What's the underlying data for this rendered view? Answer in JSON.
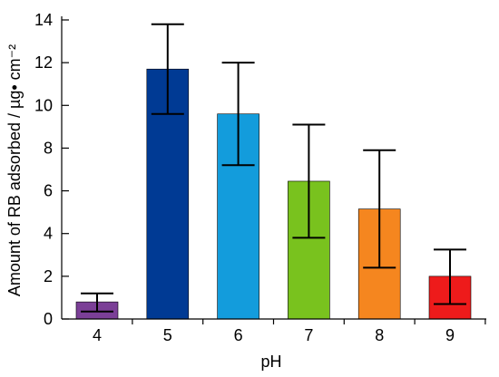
{
  "chart_data": {
    "type": "bar",
    "title": "",
    "xlabel": "pH",
    "ylabel": "Amount of RB adsorbed / µg• cm⁻²",
    "categories": [
      "4",
      "5",
      "6",
      "7",
      "8",
      "9"
    ],
    "values": [
      0.8,
      11.7,
      9.6,
      6.45,
      5.15,
      2.0
    ],
    "error_low": [
      0.35,
      9.6,
      7.2,
      3.8,
      2.4,
      0.7
    ],
    "error_high": [
      1.2,
      13.8,
      12.0,
      9.1,
      7.9,
      3.25
    ],
    "bar_colors": [
      "#7B3F97",
      "#003A94",
      "#139CDC",
      "#79C21E",
      "#F5861F",
      "#EE1B1B"
    ],
    "ylim": [
      0,
      14
    ],
    "yticks": [
      0,
      2,
      4,
      6,
      8,
      10,
      12,
      14
    ],
    "grid": false,
    "legend": "none"
  }
}
